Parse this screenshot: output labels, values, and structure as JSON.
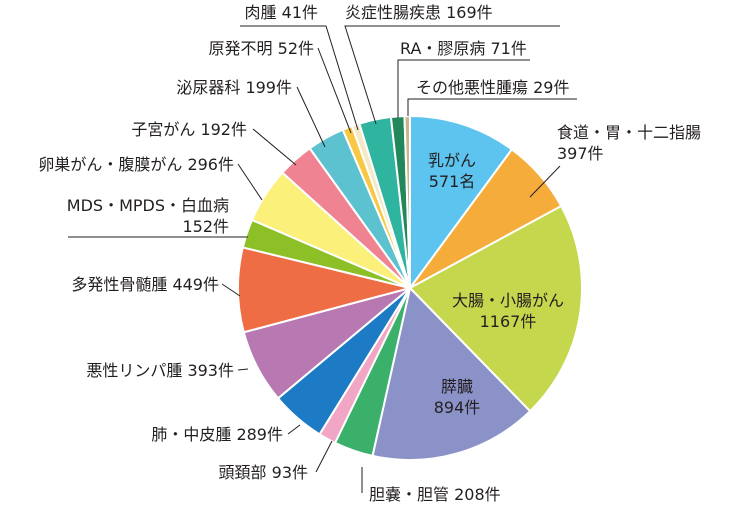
{
  "chart_data": {
    "type": "pie",
    "slices": [
      {
        "label": "乳がん",
        "value_text": "571名",
        "value": 571,
        "color": "#5cc4ee",
        "pos": "in",
        "lines": [
          "乳がん",
          "571名"
        ]
      },
      {
        "label": "食道・胃・十二指腸",
        "value_text": "397件",
        "value": 397,
        "color": "#f5ac3b",
        "pos": "out",
        "lines": [
          "食道・胃・十二指腸",
          "397件"
        ]
      },
      {
        "label": "大腸・小腸がん",
        "value_text": "1167件",
        "value": 1167,
        "color": "#c5d84d",
        "pos": "in",
        "lines": [
          "大腸・小腸がん",
          "1167件"
        ]
      },
      {
        "label": "膵臓",
        "value_text": "894件",
        "value": 894,
        "color": "#8b92c8",
        "pos": "in",
        "lines": [
          "膵臓",
          "894件"
        ]
      },
      {
        "label": "胆嚢・胆管",
        "value_text": "208件",
        "value": 208,
        "color": "#3ab06a",
        "pos": "out",
        "lines": [
          "胆嚢・胆管 208件"
        ]
      },
      {
        "label": "頭頚部",
        "value_text": "93件",
        "value": 93,
        "color": "#f0a6c4",
        "pos": "out",
        "lines": [
          "頭頚部 93件"
        ]
      },
      {
        "label": "肺・中皮腫",
        "value_text": "289件",
        "value": 289,
        "color": "#1c7bc4",
        "pos": "out",
        "lines": [
          "肺・中皮腫 289件"
        ]
      },
      {
        "label": "悪性リンパ腫",
        "value_text": "393件",
        "value": 393,
        "color": "#b879b3",
        "pos": "out",
        "lines": [
          "悪性リンパ腫 393件"
        ]
      },
      {
        "label": "多発性骨髄腫",
        "value_text": "449件",
        "value": 449,
        "color": "#ee6d45",
        "pos": "out",
        "lines": [
          "多発性骨髄腫 449件"
        ]
      },
      {
        "label": "MDS・MPDS・白血病",
        "value_text": "152件",
        "value": 152,
        "color": "#8dc026",
        "pos": "out",
        "lines": [
          "MDS・MPDS・白血病",
          "152件"
        ]
      },
      {
        "label": "卵巣がん・腹膜がん",
        "value_text": "296件",
        "value": 296,
        "color": "#fbf07a",
        "pos": "out",
        "lines": [
          "卵巣がん・腹膜がん 296件"
        ]
      },
      {
        "label": "子宮がん",
        "value_text": "192件",
        "value": 192,
        "color": "#ef8391",
        "pos": "out",
        "lines": [
          "子宮がん 192件"
        ]
      },
      {
        "label": "泌尿器科",
        "value_text": "199件",
        "value": 199,
        "color": "#5cc2cf",
        "pos": "out",
        "lines": [
          "泌尿器科 199件"
        ]
      },
      {
        "label": "原発不明",
        "value_text": "52件",
        "value": 52,
        "color": "#f7c844",
        "pos": "out",
        "lines": [
          "原発不明 52件"
        ]
      },
      {
        "label": "肉腫",
        "value_text": "41件",
        "value": 41,
        "color": "#f3e9c6",
        "pos": "out",
        "lines": [
          "肉腫 41件"
        ]
      },
      {
        "label": "炎症性腸疾患",
        "value_text": "169件",
        "value": 169,
        "color": "#2fb59f",
        "pos": "out",
        "lines": [
          "炎症性腸疾患 169件"
        ]
      },
      {
        "label": "RA・膠原病",
        "value_text": "71件",
        "value": 71,
        "color": "#23875c",
        "pos": "out",
        "lines": [
          "RA・膠原病 71件"
        ]
      },
      {
        "label": "その他悪性腫瘍",
        "value_text": "29件",
        "value": 29,
        "color": "#c9b68a",
        "pos": "out",
        "lines": [
          "その他悪性腫瘍 29件"
        ]
      }
    ]
  }
}
